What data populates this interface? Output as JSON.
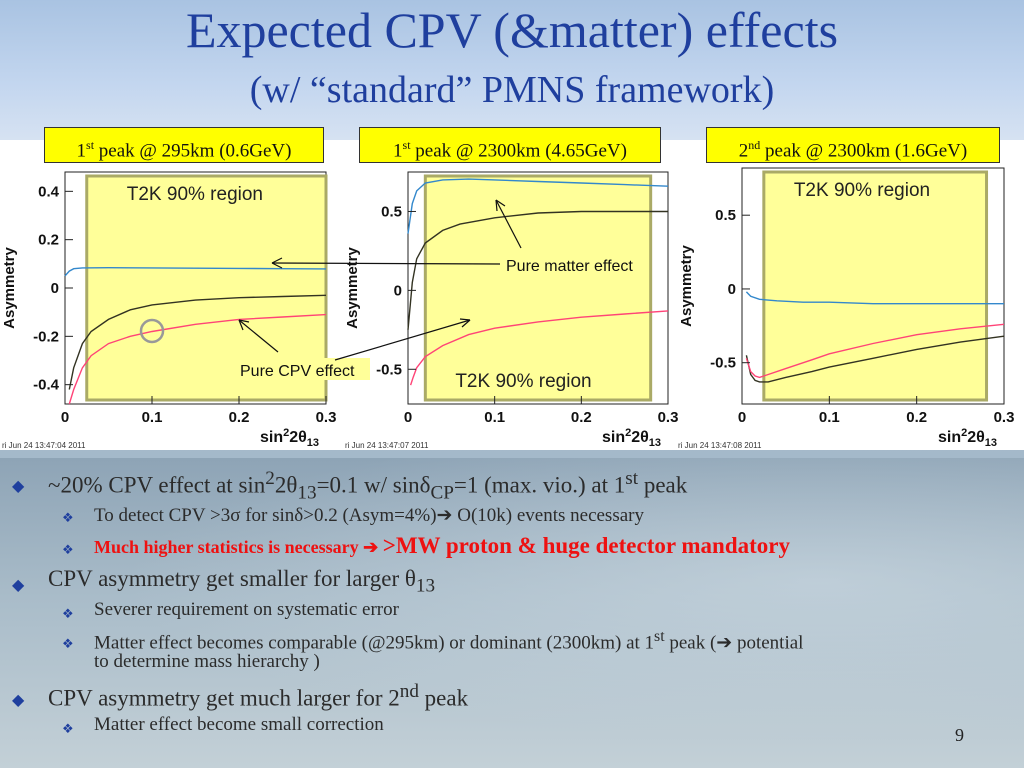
{
  "title": "Expected CPV (&matter) effects",
  "subtitle": "(w/ “standard” PMNS framework)",
  "peak_labels": [
    {
      "pre": "1",
      "sup": "st",
      "post": " peak @ 295km (0.6GeV)"
    },
    {
      "pre": "1",
      "sup": "st",
      "post": " peak @ 2300km (4.65GeV)"
    },
    {
      "pre": "2",
      "sup": "nd",
      "post": " peak @ 2300km (1.6GeV)"
    }
  ],
  "annotations": {
    "pure_matter": "Pure matter effect",
    "pure_cpv": "Pure CPV effect"
  },
  "colors": {
    "region_fill": "#ffff99",
    "region_border": "#aaaa66",
    "curve_blue": "#3388cc",
    "curve_dark": "#333322",
    "curve_pink": "#ff4477",
    "title_blue": "#1f3f9e",
    "bullet_red": "#ee1111"
  },
  "chart_data": [
    {
      "type": "line",
      "title": "1st peak @ 295km (0.6GeV)",
      "ylabel": "Asymmetry",
      "xlim": [
        0,
        0.3
      ],
      "ylim": [
        -0.48,
        0.48
      ],
      "xticks": [
        "0",
        "0.1",
        "0.2",
        "0.3"
      ],
      "yticks": [
        "-0.4",
        "-0.2",
        "0",
        "0.2",
        "0.4"
      ],
      "ytick_values": [
        -0.4,
        -0.2,
        0,
        0.2,
        0.4
      ],
      "region": [
        0.025,
        0.3
      ],
      "region_label": "T2K 90% region",
      "timestamp": "ri Jun 24 13:47:04 2011",
      "series": [
        {
          "color": "blue",
          "x": [
            0,
            0.005,
            0.01,
            0.02,
            0.05,
            0.1,
            0.15,
            0.2,
            0.25,
            0.3
          ],
          "y": [
            0.05,
            0.07,
            0.08,
            0.083,
            0.084,
            0.083,
            0.082,
            0.081,
            0.08,
            0.079
          ]
        },
        {
          "color": "dark",
          "x": [
            0.005,
            0.01,
            0.02,
            0.03,
            0.05,
            0.075,
            0.1,
            0.15,
            0.2,
            0.25,
            0.3
          ],
          "y": [
            -0.42,
            -0.33,
            -0.23,
            -0.18,
            -0.13,
            -0.09,
            -0.07,
            -0.05,
            -0.04,
            -0.035,
            -0.03
          ]
        },
        {
          "color": "pink",
          "x": [
            0.005,
            0.01,
            0.02,
            0.03,
            0.05,
            0.075,
            0.1,
            0.15,
            0.2,
            0.25,
            0.3
          ],
          "y": [
            -0.48,
            -0.42,
            -0.33,
            -0.28,
            -0.23,
            -0.2,
            -0.18,
            -0.15,
            -0.13,
            -0.12,
            -0.11
          ]
        }
      ]
    },
    {
      "type": "line",
      "title": "1st peak @ 2300km (4.65GeV)",
      "ylabel": "Asymmetry",
      "xlim": [
        0,
        0.3
      ],
      "ylim": [
        -0.72,
        0.75
      ],
      "xticks": [
        "0",
        "0.1",
        "0.2",
        "0.3"
      ],
      "yticks": [
        "-0.5",
        "0",
        "0.5"
      ],
      "ytick_values": [
        -0.5,
        0,
        0.5
      ],
      "region": [
        0.02,
        0.28
      ],
      "region_label": "T2K 90% region",
      "timestamp": "ri Jun 24 13:47:07 2011",
      "series": [
        {
          "color": "blue",
          "x": [
            0,
            0.005,
            0.01,
            0.02,
            0.04,
            0.07,
            0.1,
            0.15,
            0.2,
            0.25,
            0.3
          ],
          "y": [
            0.36,
            0.55,
            0.63,
            0.68,
            0.7,
            0.705,
            0.7,
            0.69,
            0.68,
            0.67,
            0.66
          ]
        },
        {
          "color": "dark",
          "x": [
            0,
            0.005,
            0.01,
            0.02,
            0.04,
            0.06,
            0.1,
            0.15,
            0.2,
            0.25,
            0.3
          ],
          "y": [
            -0.25,
            0.05,
            0.2,
            0.3,
            0.38,
            0.42,
            0.46,
            0.49,
            0.5,
            0.5,
            0.5
          ]
        },
        {
          "color": "pink",
          "x": [
            0.003,
            0.006,
            0.01,
            0.02,
            0.04,
            0.07,
            0.1,
            0.15,
            0.2,
            0.25,
            0.3
          ],
          "y": [
            -0.6,
            -0.55,
            -0.49,
            -0.42,
            -0.35,
            -0.28,
            -0.24,
            -0.2,
            -0.17,
            -0.15,
            -0.13
          ]
        }
      ]
    },
    {
      "type": "line",
      "title": "2nd peak @ 2300km (1.6GeV)",
      "ylabel": "Asymmetry",
      "xlim": [
        0,
        0.3
      ],
      "ylim": [
        -0.78,
        0.82
      ],
      "xticks": [
        "0",
        "0.1",
        "0.2",
        "0.3"
      ],
      "yticks": [
        "-0.5",
        "0",
        "0.5"
      ],
      "ytick_values": [
        -0.5,
        0,
        0.5
      ],
      "region": [
        0.025,
        0.28
      ],
      "region_label": "T2K 90% region",
      "timestamp": "ri Jun 24 13:47:08 2011",
      "series": [
        {
          "color": "blue",
          "x": [
            0.005,
            0.01,
            0.02,
            0.04,
            0.07,
            0.1,
            0.15,
            0.2,
            0.25,
            0.3
          ],
          "y": [
            -0.02,
            -0.05,
            -0.07,
            -0.08,
            -0.09,
            -0.09,
            -0.1,
            -0.1,
            -0.1,
            -0.1
          ]
        },
        {
          "color": "dark",
          "x": [
            0.005,
            0.01,
            0.015,
            0.02,
            0.03,
            0.05,
            0.08,
            0.1,
            0.15,
            0.2,
            0.25,
            0.3
          ],
          "y": [
            -0.45,
            -0.58,
            -0.62,
            -0.63,
            -0.63,
            -0.6,
            -0.56,
            -0.53,
            -0.47,
            -0.41,
            -0.36,
            -0.32
          ]
        },
        {
          "color": "pink",
          "x": [
            0.005,
            0.01,
            0.015,
            0.02,
            0.03,
            0.05,
            0.08,
            0.1,
            0.15,
            0.2,
            0.25,
            0.3
          ],
          "y": [
            -0.47,
            -0.56,
            -0.59,
            -0.6,
            -0.58,
            -0.54,
            -0.48,
            -0.44,
            -0.37,
            -0.31,
            -0.27,
            -0.24
          ]
        }
      ]
    }
  ],
  "bullets": {
    "b1": {
      "a": "~20% CPV effect at sin",
      "s1": "2",
      "b": "2θ",
      "s2": "13",
      "c": "=0.1 w/ sinδ",
      "s3": "CP",
      "d": "=1 (max. vio.) at 1",
      "s4": "st",
      "e": " peak"
    },
    "b1_1": "To detect CPV >3σ for sinδ>0.2 (Asym=4%)➔ O(10k) events necessary",
    "b1_2a": "Much higher statistics  is necessary ➔ ",
    "b1_2b": ">MW proton & huge detector mandatory",
    "b2": {
      "a": "CPV asymmetry get smaller for larger θ",
      "s1": "13"
    },
    "b2_1": "Severer requirement on systematic error",
    "b2_2": {
      "a": "Matter effect becomes comparable (@295km) or dominant (2300km) at 1",
      "s1": "st",
      "b": " peak (➔ potential"
    },
    "b2_2_cont": "to determine mass hierarchy )",
    "b3": {
      "a": "CPV asymmetry get much larger for 2",
      "s1": "nd",
      "b": " peak"
    },
    "b3_1": "Matter effect become small correction"
  },
  "page_number": "9",
  "markers": {
    "diamond": "◆",
    "sub": "❖"
  }
}
